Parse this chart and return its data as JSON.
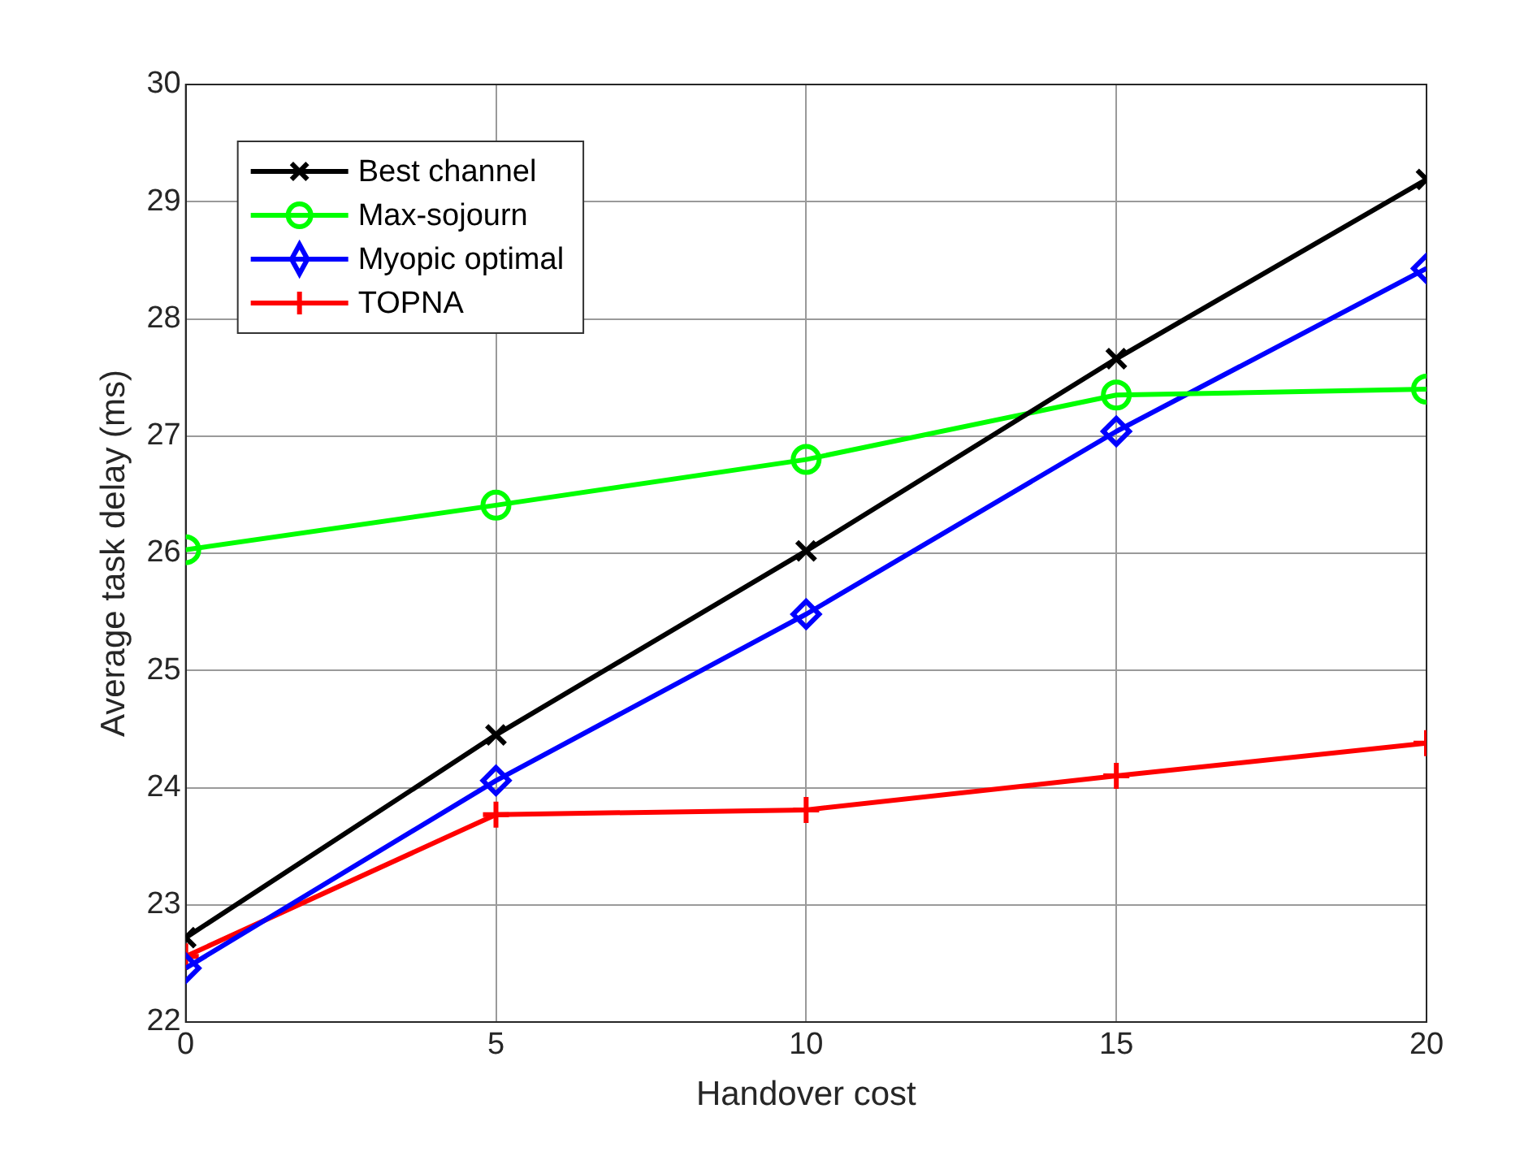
{
  "chart_data": {
    "type": "line",
    "xlabel": "Handover cost",
    "ylabel": "Average task delay (ms)",
    "x": [
      0,
      5,
      10,
      15,
      20
    ],
    "xlim": [
      0,
      20
    ],
    "xticks": [
      0,
      5,
      10,
      15,
      20
    ],
    "ylim": [
      22,
      30
    ],
    "yticks": [
      22,
      23,
      24,
      25,
      26,
      27,
      28,
      29,
      30
    ],
    "grid": true,
    "legend": "top left",
    "line_style": "solid",
    "series": [
      {
        "name": "Best channel",
        "color": "#000000",
        "marker": "cross",
        "values": [
          22.72,
          24.45,
          26.02,
          27.66,
          29.19
        ]
      },
      {
        "name": "Max-sojourn",
        "color": "#00ff00",
        "marker": "circle",
        "values": [
          26.03,
          26.41,
          26.8,
          27.35,
          27.4
        ]
      },
      {
        "name": "Myopic optimal",
        "color": "#0000ff",
        "marker": "diamond",
        "values": [
          22.46,
          24.06,
          25.48,
          27.04,
          28.43
        ]
      },
      {
        "name": "TOPNA",
        "color": "#ff0000",
        "marker": "plus",
        "values": [
          22.56,
          23.77,
          23.81,
          24.1,
          24.38
        ]
      }
    ]
  }
}
